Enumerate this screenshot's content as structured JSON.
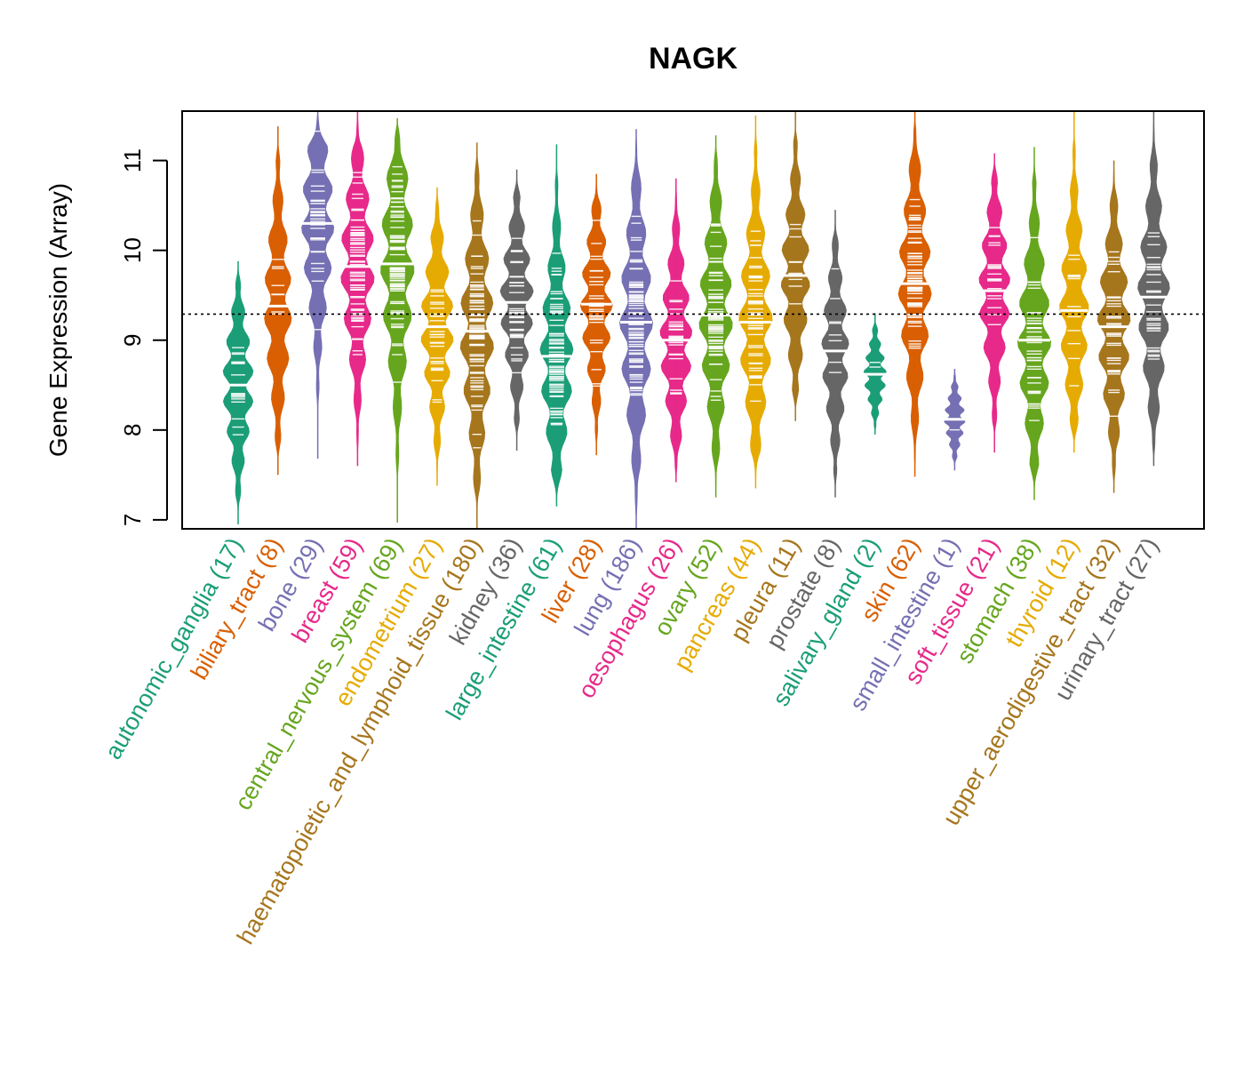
{
  "chart_data": {
    "type": "beanplot",
    "title": "NAGK",
    "ylabel": "Gene Expression (Array)",
    "xlabel": "",
    "ylim": [
      6.9,
      11.55
    ],
    "yticks": [
      7,
      8,
      9,
      10,
      11
    ],
    "reference_line": 9.29,
    "grid": false,
    "series": [
      {
        "name": "autonomic_ganglia",
        "n": 17,
        "label": "autonomic_ganglia (17)",
        "color": "#1B9E77",
        "min": 6.95,
        "max": 9.88,
        "median": 8.5
      },
      {
        "name": "biliary_tract",
        "n": 8,
        "label": "biliary_tract (8)",
        "color": "#D95F02",
        "min": 7.5,
        "max": 11.38,
        "median": 9.38
      },
      {
        "name": "bone",
        "n": 29,
        "label": "bone (29)",
        "color": "#7570B3",
        "min": 7.68,
        "max": 11.55,
        "median": 10.3
      },
      {
        "name": "breast",
        "n": 59,
        "label": "breast (59)",
        "color": "#E7298A",
        "min": 7.6,
        "max": 11.55,
        "median": 9.82
      },
      {
        "name": "central_nervous_system",
        "n": 69,
        "label": "central_nervous_system (69)",
        "color": "#66A61E",
        "min": 6.97,
        "max": 11.47,
        "median": 9.85
      },
      {
        "name": "endometrium",
        "n": 27,
        "label": "endometrium (27)",
        "color": "#E6AB02",
        "min": 7.38,
        "max": 10.7,
        "median": 9.15
      },
      {
        "name": "haematopoietic_and_lymphoid_tissue",
        "n": 180,
        "label": "haematopoietic_and_lymphoid_tissue (180)",
        "color": "#A6761D",
        "min": 6.9,
        "max": 11.2,
        "median": 9.1
      },
      {
        "name": "kidney",
        "n": 36,
        "label": "kidney (36)",
        "color": "#666666",
        "min": 7.77,
        "max": 10.9,
        "median": 9.42
      },
      {
        "name": "large_intestine",
        "n": 61,
        "label": "large_intestine (61)",
        "color": "#1B9E77",
        "min": 7.15,
        "max": 11.18,
        "median": 8.82
      },
      {
        "name": "liver",
        "n": 28,
        "label": "liver (28)",
        "color": "#D95F02",
        "min": 7.72,
        "max": 10.85,
        "median": 9.4
      },
      {
        "name": "lung",
        "n": 186,
        "label": "lung (186)",
        "color": "#7570B3",
        "min": 6.9,
        "max": 11.35,
        "median": 9.2
      },
      {
        "name": "oesophagus",
        "n": 26,
        "label": "oesophagus (26)",
        "color": "#E7298A",
        "min": 7.42,
        "max": 10.8,
        "median": 9.0
      },
      {
        "name": "ovary",
        "n": 52,
        "label": "ovary (52)",
        "color": "#66A61E",
        "min": 7.25,
        "max": 11.28,
        "median": 9.28
      },
      {
        "name": "pancreas",
        "n": 44,
        "label": "pancreas (44)",
        "color": "#E6AB02",
        "min": 7.35,
        "max": 11.5,
        "median": 9.2
      },
      {
        "name": "pleura",
        "n": 11,
        "label": "pleura (11)",
        "color": "#A6761D",
        "min": 8.1,
        "max": 11.55,
        "median": 9.72
      },
      {
        "name": "prostate",
        "n": 8,
        "label": "prostate (8)",
        "color": "#666666",
        "min": 7.25,
        "max": 10.45,
        "median": 8.88
      },
      {
        "name": "salivary_gland",
        "n": 2,
        "label": "salivary_gland (2)",
        "color": "#1B9E77",
        "min": 7.95,
        "max": 9.3,
        "median": 8.62
      },
      {
        "name": "skin",
        "n": 62,
        "label": "skin (62)",
        "color": "#D95F02",
        "min": 7.48,
        "max": 11.55,
        "median": 9.63
      },
      {
        "name": "small_intestine",
        "n": 1,
        "label": "small_intestine (1)",
        "color": "#7570B3",
        "min": 7.55,
        "max": 8.68,
        "median": 8.12
      },
      {
        "name": "soft_tissue",
        "n": 21,
        "label": "soft_tissue (21)",
        "color": "#E7298A",
        "min": 7.75,
        "max": 11.08,
        "median": 9.55
      },
      {
        "name": "stomach",
        "n": 38,
        "label": "stomach (38)",
        "color": "#66A61E",
        "min": 7.22,
        "max": 11.15,
        "median": 9.0
      },
      {
        "name": "thyroid",
        "n": 12,
        "label": "thyroid (12)",
        "color": "#E6AB02",
        "min": 7.75,
        "max": 11.55,
        "median": 9.33
      },
      {
        "name": "upper_aerodigestive_tract",
        "n": 32,
        "label": "upper_aerodigestive_tract (32)",
        "color": "#A6761D",
        "min": 7.3,
        "max": 11.0,
        "median": 9.15
      },
      {
        "name": "urinary_tract",
        "n": 27,
        "label": "urinary_tract (27)",
        "color": "#666666",
        "min": 7.6,
        "max": 11.55,
        "median": 9.48
      }
    ]
  }
}
